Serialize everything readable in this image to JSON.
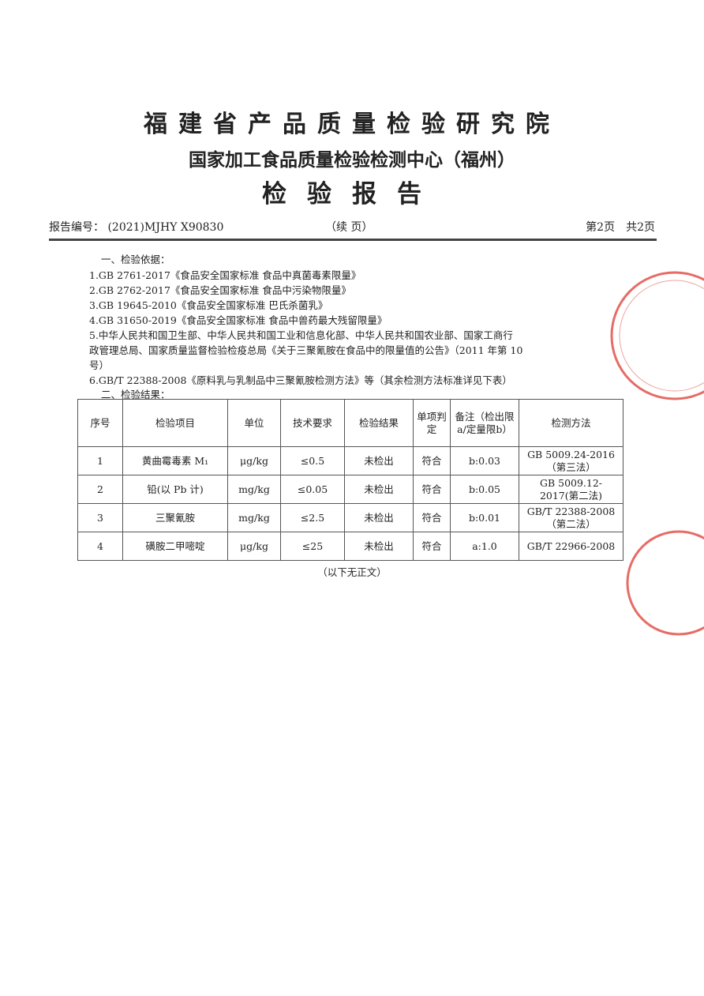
{
  "institute": "福建省产品质量检验研究院",
  "center": "国家加工食品质量检验检测中心（福州）",
  "doc_title": "检验报告",
  "report_no_label": "报告编号：",
  "report_no": "(2021)MJHY X90830",
  "continued": "（续 页）",
  "page_info": "第2页　共2页",
  "section1": "一、检验依据：",
  "basis": [
    "1.GB 2761-2017《食品安全国家标准 食品中真菌毒素限量》",
    "2.GB 2762-2017《食品安全国家标准 食品中污染物限量》",
    "3.GB 19645-2010《食品安全国家标准 巴氏杀菌乳》",
    "4.GB 31650-2019《食品安全国家标准 食品中兽药最大残留限量》",
    "5.中华人民共和国卫生部、中华人民共和国工业和信息化部、中华人民共和国农业部、国家工商行",
    "政管理总局、国家质量监督检验检疫总局《关于三聚氰胺在食品中的限量值的公告》（2011 年第 10",
    "号）",
    "6.GB/T 22388-2008《原料乳与乳制品中三聚氰胺检测方法》等（其余检测方法标准详见下表）"
  ],
  "section2": "二、检验结果：",
  "table": {
    "headers": [
      "序号",
      "检验项目",
      "单位",
      "技术要求",
      "检验结果",
      "单项判定",
      "备注（检出限a/定量限b）",
      "检测方法"
    ],
    "rows": [
      [
        "1",
        "黄曲霉毒素 M₁",
        "μg/kg",
        "≤0.5",
        "未检出",
        "符合",
        "b:0.03",
        "GB 5009.24-2016（第三法）"
      ],
      [
        "2",
        "铅(以 Pb 计)",
        "mg/kg",
        "≤0.05",
        "未检出",
        "符合",
        "b:0.05",
        "GB 5009.12-2017(第二法)"
      ],
      [
        "3",
        "三聚氰胺",
        "mg/kg",
        "≤2.5",
        "未检出",
        "符合",
        "b:0.01",
        "GB/T 22388-2008（第二法）"
      ],
      [
        "4",
        "磺胺二甲嘧啶",
        "μg/kg",
        "≤25",
        "未检出",
        "符合",
        "a:1.0",
        "GB/T 22966-2008"
      ]
    ]
  },
  "end_note": "（以下无正文）",
  "stamp_color": "#e0473f"
}
